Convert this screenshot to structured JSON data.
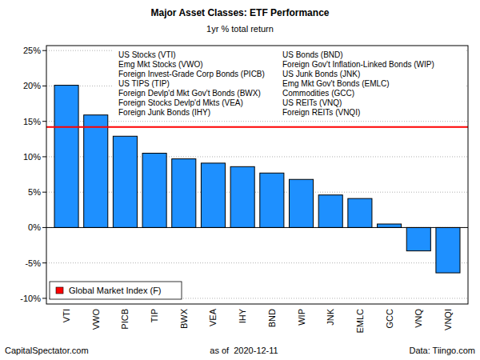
{
  "chart_data": {
    "type": "bar",
    "title": "Major Asset Classes: ETF Performance",
    "subtitle": "1yr % total return",
    "categories": [
      "VTI",
      "VWO",
      "PICB",
      "TIP",
      "BWX",
      "VEA",
      "IHY",
      "BND",
      "WIP",
      "JNK",
      "EMLC",
      "GCC",
      "VNQ",
      "VNQI"
    ],
    "category_names": [
      "US Stocks (VTI)",
      "Emg Mkt Stocks (VWO)",
      "Foreign Invest-Grade Corp Bonds (PICB)",
      "US TIPS (TIP)",
      "Foreign Devlp'd Mkt Gov't Bonds (BWX)",
      "Foreign Stocks Devlp'd Mkts (VEA)",
      "Foreign Junk Bonds (IHY)",
      "US Bonds (BND)",
      "Foreign Gov't Inflation-Linked Bonds (WIP)",
      "US Junk Bonds (JNK)",
      "Emg Mkt Gov't Bonds (EMLC)",
      "Commodities (GCC)",
      "US REITs (VNQ)",
      "Foreign REITs (VNQI)"
    ],
    "values": [
      20.1,
      15.9,
      12.9,
      10.5,
      9.7,
      9.1,
      8.6,
      7.7,
      6.8,
      4.6,
      4.1,
      0.5,
      -3.3,
      -6.4
    ],
    "color": "#1e90ff",
    "ylim": [
      -10.8,
      25.7
    ],
    "yticks": [
      {
        "value": -10,
        "label": "-10%"
      },
      {
        "value": -5,
        "label": "-5%"
      },
      {
        "value": 0,
        "label": "0%"
      },
      {
        "value": 5,
        "label": "5%"
      },
      {
        "value": 10,
        "label": "10%"
      },
      {
        "value": 15,
        "label": "15%"
      },
      {
        "value": 20,
        "label": "20%"
      },
      {
        "value": 25,
        "label": "25%"
      }
    ],
    "grid": true,
    "reference_line": {
      "name": "Global Market Index (F)",
      "value": 14.2,
      "color": "#ff0000"
    },
    "legend": "bottom-left",
    "footer": {
      "left": "CapitalSpectator.com",
      "center": "as of  2020-12-11",
      "right": "Data: Tiingo.com"
    }
  }
}
